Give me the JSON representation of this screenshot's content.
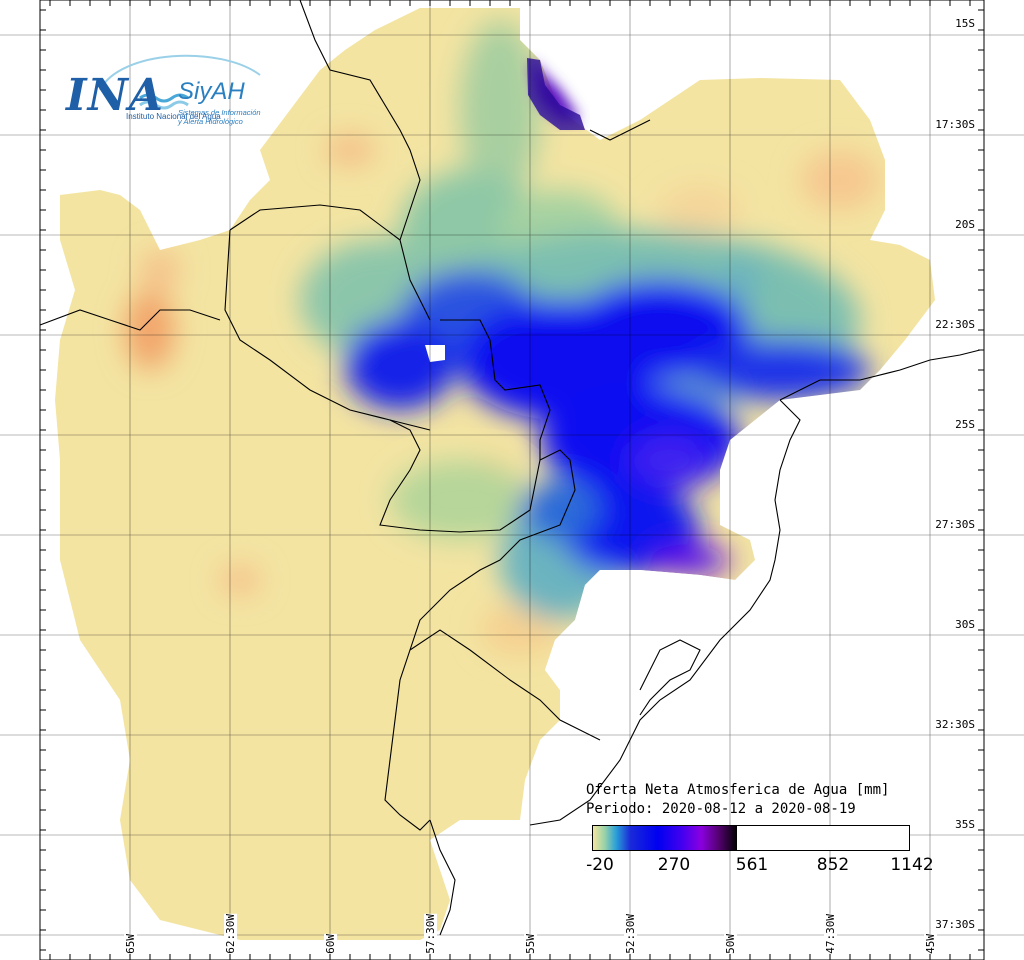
{
  "map": {
    "latitude_labels": [
      "15S",
      "17:30S",
      "20S",
      "22:30S",
      "25S",
      "27:30S",
      "30S",
      "32:30S",
      "35S",
      "37:30S"
    ],
    "longitude_labels": [
      "65W",
      "62:30W",
      "60W",
      "57:30W",
      "55W",
      "52:30W",
      "50W",
      "47:30W",
      "45W"
    ]
  },
  "logo": {
    "ina": "INA",
    "siyah": "SiyAH",
    "ina_subtitle": "Instituto Nacional del Agua",
    "siyah_subtitle_1": "Sistemas de Información",
    "siyah_subtitle_2": "y Alerta Hidrológico"
  },
  "legend": {
    "title": "Oferta Neta Atmosferica de Agua [mm]",
    "period": "Periodo: 2020-08-12 a 2020-08-19",
    "ticks": [
      "-20",
      "270",
      "561",
      "852",
      "1142"
    ],
    "colors": {
      "low": "#f2e6a0",
      "mid_low": "#9ad2a8",
      "mid": "#0000f0",
      "high": "#8a00e0",
      "max": "#000000",
      "dry": "#f5c48a"
    }
  }
}
